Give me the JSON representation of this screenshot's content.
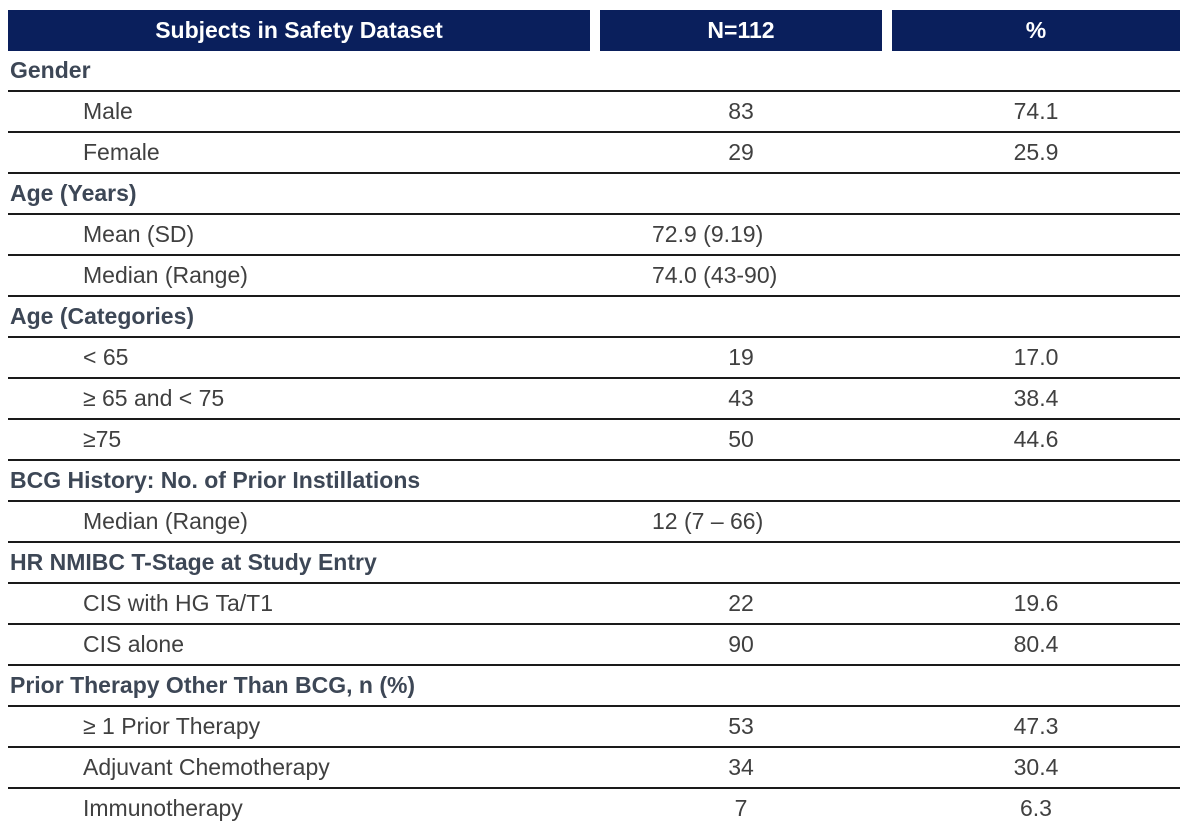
{
  "header": {
    "col1": "Subjects in Safety Dataset",
    "col2": "N=112",
    "col3": "%"
  },
  "sections": [
    {
      "title": "Gender",
      "items": [
        {
          "label": "Male",
          "n": "83",
          "pct": "74.1"
        },
        {
          "label": "Female",
          "n": "29",
          "pct": "25.9"
        }
      ]
    },
    {
      "title": "Age (Years)",
      "items": [
        {
          "label": "Mean (SD)",
          "stat": "72.9 (9.19)"
        },
        {
          "label": "Median (Range)",
          "stat": "74.0 (43-90)"
        }
      ]
    },
    {
      "title": "Age (Categories)",
      "items": [
        {
          "label": "< 65",
          "n": "19",
          "pct": "17.0"
        },
        {
          "label": "≥ 65 and < 75",
          "n": "43",
          "pct": "38.4"
        },
        {
          "label": "≥75",
          "n": "50",
          "pct": "44.6"
        }
      ]
    },
    {
      "title": "BCG History: No. of Prior Instillations",
      "items": [
        {
          "label": "Median (Range)",
          "stat": "12 (7 – 66)"
        }
      ]
    },
    {
      "title": "HR NMIBC T-Stage at Study Entry",
      "items": [
        {
          "label": "CIS with HG Ta/T1",
          "n": "22",
          "pct": "19.6"
        },
        {
          "label": "CIS alone",
          "n": "90",
          "pct": "80.4"
        }
      ]
    },
    {
      "title": "Prior Therapy Other Than BCG, n (%)",
      "items": [
        {
          "label": "≥ 1 Prior Therapy",
          "n": "53",
          "pct": "47.3"
        },
        {
          "label": "Adjuvant Chemotherapy",
          "n": "34",
          "pct": "30.4"
        },
        {
          "label": "Immunotherapy",
          "n": "7",
          "pct": "6.3"
        }
      ]
    }
  ]
}
